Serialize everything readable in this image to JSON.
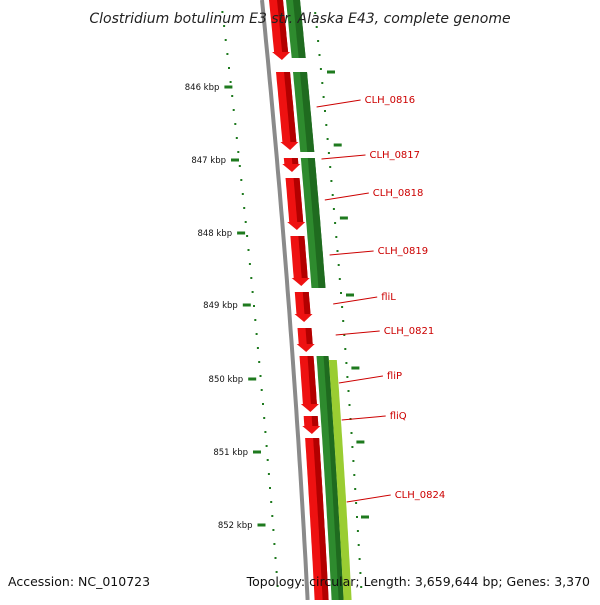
{
  "title": "Clostridium botulinum E3 str. Alaska E43, complete genome",
  "footer": {
    "accession": "Accession: NC_010723",
    "stats": "Topology: circular; Length: 3,659,644 bp; Genes: 3,370"
  },
  "colors": {
    "background": "#ffffff",
    "backbone": "#8a8a8a",
    "ticks": "#1e7a1e",
    "forward_genes": "#2e8b2e",
    "forward_genes_alt": "#9acd32",
    "reverse_genes": "#ee1111",
    "gene_labels": "#cc0000"
  },
  "kbp_ticks": [
    "846 kbp",
    "847 kbp",
    "848 kbp",
    "849 kbp",
    "850 kbp",
    "851 kbp",
    "852 kbp"
  ],
  "gene_labels": [
    "CLH_0816",
    "CLH_0817",
    "CLH_0818",
    "CLH_0819",
    "fliL",
    "CLH_0821",
    "fliP",
    "fliQ",
    "CLH_0824"
  ]
}
